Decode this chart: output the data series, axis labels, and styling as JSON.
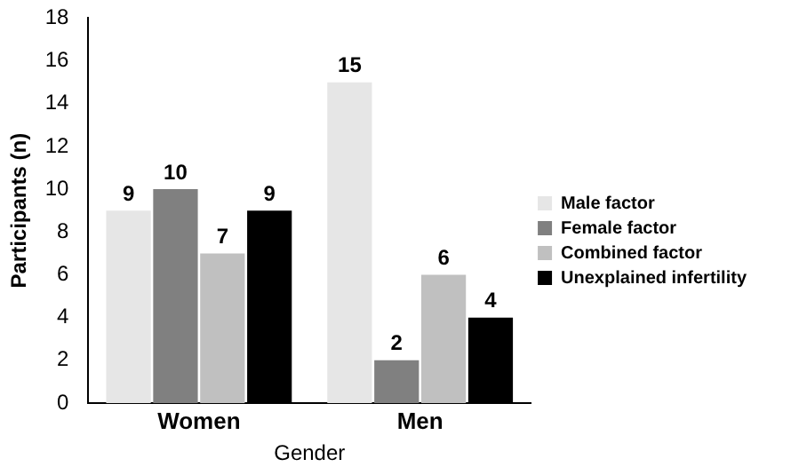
{
  "chart_data": {
    "type": "bar",
    "xlabel": "Gender",
    "ylabel": "Participants (n)",
    "categories": [
      "Women",
      "Men"
    ],
    "series": [
      {
        "name": "Male factor",
        "color": "#e6e6e6",
        "values": [
          9,
          15
        ]
      },
      {
        "name": "Female factor",
        "color": "#808080",
        "values": [
          10,
          2
        ]
      },
      {
        "name": "Combined factor",
        "color": "#c0c0c0",
        "values": [
          7,
          6
        ]
      },
      {
        "name": "Unexplained infertility",
        "color": "#000000",
        "values": [
          9,
          4
        ]
      }
    ],
    "ylim": [
      0,
      18
    ],
    "yticks": [
      0,
      2,
      4,
      6,
      8,
      10,
      12,
      14,
      16,
      18
    ],
    "grid": false,
    "legend": "right",
    "data_labels": true
  }
}
